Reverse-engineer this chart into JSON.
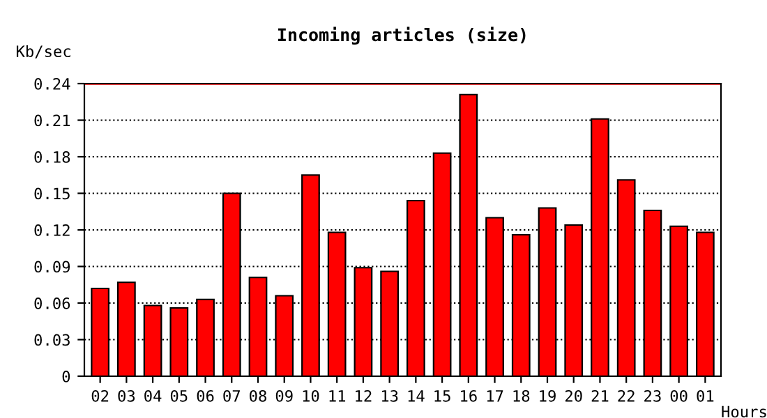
{
  "chart_data": {
    "type": "bar",
    "title": "Incoming articles (size)",
    "ylabel": "Kb/sec",
    "xlabel": "Hours",
    "categories": [
      "02",
      "03",
      "04",
      "05",
      "06",
      "07",
      "08",
      "09",
      "10",
      "11",
      "12",
      "13",
      "14",
      "15",
      "16",
      "17",
      "18",
      "19",
      "20",
      "21",
      "22",
      "23",
      "00",
      "01"
    ],
    "values": [
      0.072,
      0.077,
      0.058,
      0.056,
      0.063,
      0.15,
      0.081,
      0.066,
      0.165,
      0.118,
      0.089,
      0.086,
      0.144,
      0.183,
      0.231,
      0.13,
      0.116,
      0.138,
      0.124,
      0.211,
      0.161,
      0.136,
      0.123,
      0.118
    ],
    "color": "#ff0000",
    "ylim": [
      0,
      0.24
    ],
    "yticks": [
      0,
      0.03,
      0.06,
      0.09,
      0.12,
      0.15,
      0.18,
      0.21,
      0.24
    ],
    "ref_lines": [
      {
        "axis": "y",
        "value": 0.24,
        "color": "#ff0000",
        "line_style": "solid"
      }
    ],
    "grid": "y",
    "line_style": "dotted"
  }
}
